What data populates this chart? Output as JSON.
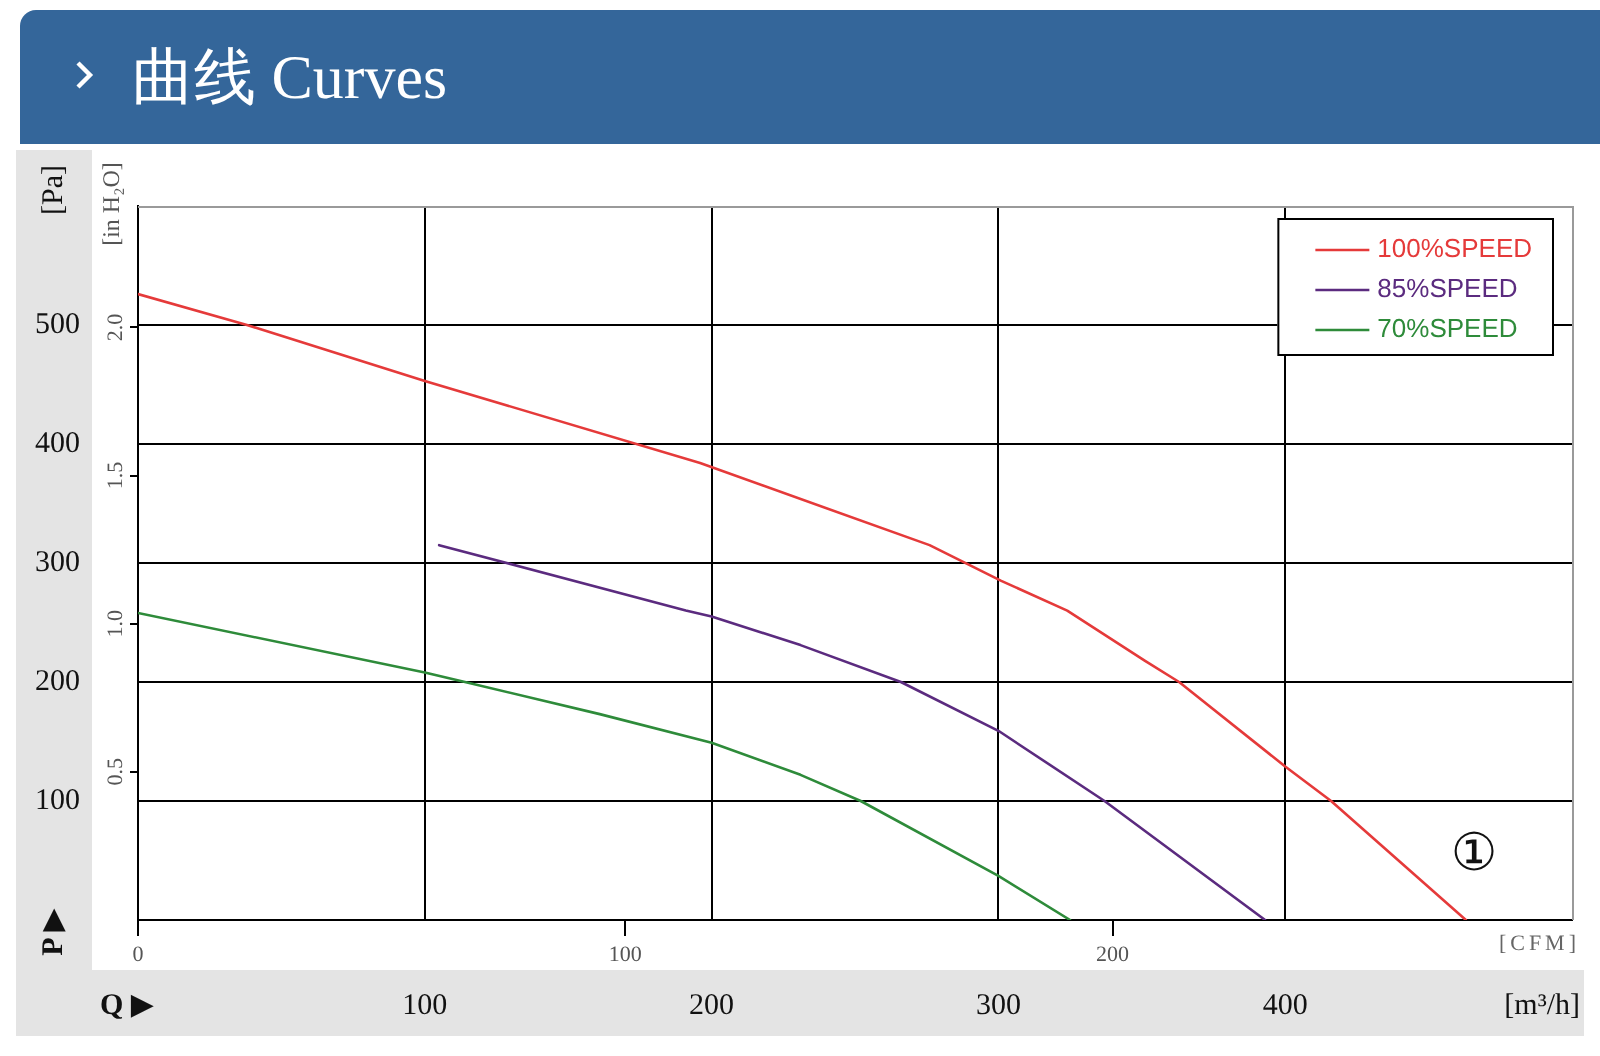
{
  "chart_data": {
    "type": "line",
    "title": "曲线 Curves",
    "xlabel": "[m³/h]",
    "ylabel": "[Pa]",
    "y2label": "[in H₂O]",
    "x2label": "[CFM]",
    "xlim": [
      0,
      500
    ],
    "xticks": [
      100,
      200,
      300,
      400
    ],
    "ylim": [
      0,
      600
    ],
    "yticks": [
      100,
      200,
      300,
      400,
      500
    ],
    "y2lim": [
      0,
      2.41
    ],
    "y2ticks": [
      0.5,
      {
        "value": 1,
        "label": "1.0"
      },
      1.5,
      {
        "value": 2,
        "label": "2.0"
      }
    ],
    "x2lim": [
      0,
      294.3
    ],
    "x2ticks": [
      0,
      100,
      200
    ],
    "series": [
      {
        "name": "100%SPEED",
        "color": "#e53a3a",
        "x": [
          0,
          38,
          100,
          196,
          276,
          301,
          324,
          351,
          363,
          400,
          416,
          463
        ],
        "values": [
          526,
          500,
          453,
          384,
          315,
          285,
          260,
          218,
          200,
          129,
          100,
          0
        ]
      },
      {
        "name": "85%SPEED",
        "color": "#5b2b7f",
        "x": [
          105,
          191,
          200,
          231,
          266,
          300,
          337,
          393
        ],
        "values": [
          315,
          260,
          255,
          231,
          200,
          159,
          100,
          0
        ]
      },
      {
        "name": "70%SPEED",
        "color": "#2e8b3a",
        "x": [
          0,
          100,
          114,
          161,
          200,
          231,
          252,
          300,
          325
        ],
        "values": [
          258,
          208,
          200,
          173,
          149,
          122,
          100,
          37,
          0
        ]
      }
    ],
    "grid": true,
    "legend": "top right",
    "marker": "none",
    "line_style": "solid",
    "annotations": [
      "Q ▶",
      "P ▶",
      "①"
    ]
  }
}
